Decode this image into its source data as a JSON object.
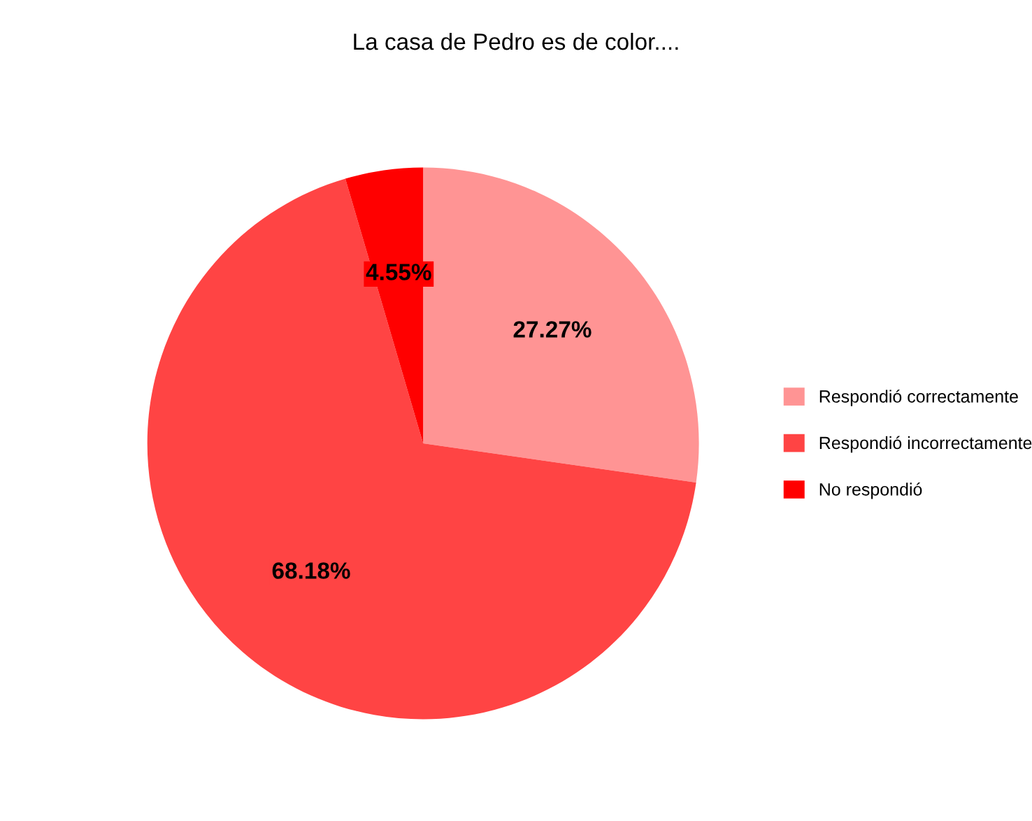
{
  "chart_data": {
    "type": "pie",
    "title": "La casa de Pedro es de color....",
    "categories": [
      "Respondió correctamente",
      "Respondió incorrectamente",
      "No respondió"
    ],
    "values": [
      27.27,
      68.18,
      4.55
    ],
    "colors": [
      "#ff9494",
      "#ff4444",
      "#ff0000"
    ],
    "value_labels": [
      "27.27%",
      "68.18%",
      "4.55%"
    ],
    "legend": "right"
  }
}
